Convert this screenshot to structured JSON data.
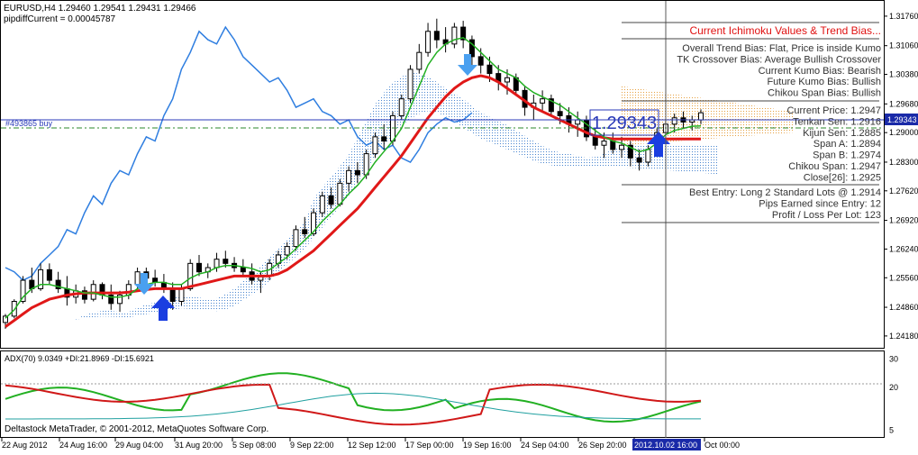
{
  "chart_data": {
    "type": "candlestick",
    "symbol_header": "EURUSD,H4  1.29460 1.29541 1.29431 1.29466",
    "indicator_line": "pipdiffCurrent = 0.00045787",
    "order_label": "#493865 buy",
    "price_axis": {
      "ylim": [
        1.239,
        1.321
      ],
      "ticks": [
        "1.31760",
        "1.31060",
        "1.30380",
        "1.29680",
        "1.29000",
        "1.28300",
        "1.27620",
        "1.26920",
        "1.26240",
        "1.25560",
        "1.24860",
        "1.24180"
      ],
      "tick_values": [
        1.3176,
        1.3106,
        1.3038,
        1.2968,
        1.29,
        1.283,
        1.2762,
        1.2692,
        1.2624,
        1.2556,
        1.2486,
        1.2418
      ],
      "current_price_label": "1.29343",
      "current_price_value": 1.29343
    },
    "big_price_label": "1.29343",
    "time_axis": {
      "ticks": [
        "22 Aug 2012",
        "24 Aug 16:00",
        "29 Aug 04:00",
        "31 Aug 20:00",
        "5 Sep 08:00",
        "9 Sep 22:00",
        "12 Sep 12:00",
        "17 Sep 00:00",
        "19 Sep 16:00",
        "24 Sep 04:00",
        "26 Sep 20:00",
        "2012.10.02 16:00",
        "Oct 00:00"
      ]
    },
    "info_panel": {
      "title": "Current Ichimoku Values & Trend Bias...",
      "bias_lines": [
        "Overall Trend Bias: Flat, Price is inside Kumo",
        "TK Crossover Bias: Average Bullish Crossover",
        "Current Kumo Bias: Bearish",
        "Future Kumo Bias: Bullish",
        "Chikou Span Bias: Bullish"
      ],
      "value_lines": [
        "Current Price: 1.2947",
        "Tenkan Sen: 1.2916",
        "Kijun Sen: 1.2885",
        "Span A: 1.2894",
        "Span B: 1.2974",
        "Chikou Span: 1.2947",
        "Close[26]: 1.2925"
      ],
      "entry_lines": [
        "Best Entry: Long 2 Standard Lots @ 1.2914",
        "Pips Earned since Entry: 12",
        "Profit / Loss Per Lot: 123"
      ]
    },
    "adx_panel": {
      "label": "ADX(70) 9.0349 +DI:21.8969 -DI:15.6921",
      "ticks": [
        "30",
        "20",
        "5"
      ],
      "tick_values": [
        30,
        20,
        5
      ],
      "ylim": [
        3,
        32
      ]
    },
    "copyright": "Deltastock MetaTrader, © 2001-2012, MetaQuotes Software Corp.",
    "candles": [
      [
        1.245,
        1.247,
        1.2435,
        1.2465
      ],
      [
        1.2465,
        1.2505,
        1.246,
        1.25
      ],
      [
        1.25,
        1.256,
        1.2495,
        1.255
      ],
      [
        1.255,
        1.258,
        1.252,
        1.253
      ],
      [
        1.253,
        1.259,
        1.2525,
        1.2575
      ],
      [
        1.2575,
        1.259,
        1.254,
        1.255
      ],
      [
        1.255,
        1.257,
        1.252,
        1.253
      ],
      [
        1.253,
        1.256,
        1.249,
        1.251
      ],
      [
        1.251,
        1.254,
        1.2495,
        1.2525
      ],
      [
        1.2525,
        1.2535,
        1.2495,
        1.2505
      ],
      [
        1.2505,
        1.255,
        1.25,
        1.254
      ],
      [
        1.254,
        1.2545,
        1.2505,
        1.2515
      ],
      [
        1.2515,
        1.254,
        1.248,
        1.2495
      ],
      [
        1.2495,
        1.2525,
        1.2475,
        1.2515
      ],
      [
        1.2515,
        1.255,
        1.2505,
        1.254
      ],
      [
        1.254,
        1.258,
        1.253,
        1.257
      ],
      [
        1.257,
        1.258,
        1.254,
        1.2555
      ],
      [
        1.2555,
        1.2575,
        1.2535,
        1.2545
      ],
      [
        1.2545,
        1.2565,
        1.252,
        1.253
      ],
      [
        1.253,
        1.2545,
        1.248,
        1.25
      ],
      [
        1.25,
        1.254,
        1.249,
        1.253
      ],
      [
        1.253,
        1.26,
        1.2525,
        1.259
      ],
      [
        1.259,
        1.261,
        1.256,
        1.257
      ],
      [
        1.257,
        1.259,
        1.2555,
        1.258
      ],
      [
        1.258,
        1.2615,
        1.257,
        1.26
      ],
      [
        1.26,
        1.262,
        1.258,
        1.259
      ],
      [
        1.259,
        1.2605,
        1.257,
        1.258
      ],
      [
        1.258,
        1.26,
        1.256,
        1.257
      ],
      [
        1.257,
        1.259,
        1.254,
        1.255
      ],
      [
        1.255,
        1.257,
        1.252,
        1.256
      ],
      [
        1.256,
        1.26,
        1.255,
        1.259
      ],
      [
        1.259,
        1.262,
        1.258,
        1.261
      ],
      [
        1.261,
        1.264,
        1.26,
        1.263
      ],
      [
        1.263,
        1.268,
        1.262,
        1.267
      ],
      [
        1.267,
        1.27,
        1.265,
        1.266
      ],
      [
        1.266,
        1.272,
        1.2655,
        1.271
      ],
      [
        1.271,
        1.276,
        1.27,
        1.275
      ],
      [
        1.275,
        1.277,
        1.272,
        1.273
      ],
      [
        1.273,
        1.279,
        1.2725,
        1.278
      ],
      [
        1.278,
        1.282,
        1.276,
        1.281
      ],
      [
        1.281,
        1.283,
        1.278,
        1.28
      ],
      [
        1.28,
        1.286,
        1.279,
        1.285
      ],
      [
        1.285,
        1.29,
        1.284,
        1.289
      ],
      [
        1.289,
        1.292,
        1.286,
        1.288
      ],
      [
        1.288,
        1.295,
        1.287,
        1.294
      ],
      [
        1.294,
        1.299,
        1.293,
        1.298
      ],
      [
        1.298,
        1.306,
        1.297,
        1.305
      ],
      [
        1.305,
        1.311,
        1.304,
        1.309
      ],
      [
        1.309,
        1.316,
        1.308,
        1.314
      ],
      [
        1.314,
        1.317,
        1.31,
        1.312
      ],
      [
        1.312,
        1.315,
        1.309,
        1.311
      ],
      [
        1.311,
        1.316,
        1.31,
        1.315
      ],
      [
        1.315,
        1.3165,
        1.31,
        1.312
      ],
      [
        1.312,
        1.313,
        1.306,
        1.308
      ],
      [
        1.308,
        1.31,
        1.304,
        1.306
      ],
      [
        1.306,
        1.308,
        1.302,
        1.304
      ],
      [
        1.304,
        1.306,
        1.3,
        1.302
      ],
      [
        1.302,
        1.305,
        1.299,
        1.303
      ],
      [
        1.303,
        1.304,
        1.299,
        1.3
      ],
      [
        1.3,
        1.301,
        1.294,
        1.296
      ],
      [
        1.296,
        1.299,
        1.293,
        1.297
      ],
      [
        1.297,
        1.3,
        1.295,
        1.298
      ],
      [
        1.298,
        1.299,
        1.294,
        1.295
      ],
      [
        1.295,
        1.297,
        1.292,
        1.294
      ],
      [
        1.294,
        1.296,
        1.29,
        1.292
      ],
      [
        1.292,
        1.295,
        1.289,
        1.293
      ],
      [
        1.293,
        1.294,
        1.288,
        1.289
      ],
      [
        1.289,
        1.291,
        1.286,
        1.287
      ],
      [
        1.287,
        1.29,
        1.284,
        1.288
      ],
      [
        1.288,
        1.29,
        1.285,
        1.286
      ],
      [
        1.286,
        1.289,
        1.284,
        1.287
      ],
      [
        1.287,
        1.288,
        1.282,
        1.284
      ],
      [
        1.284,
        1.286,
        1.281,
        1.283
      ],
      [
        1.283,
        1.287,
        1.282,
        1.286
      ],
      [
        1.286,
        1.291,
        1.285,
        1.29
      ],
      [
        1.29,
        1.293,
        1.288,
        1.292
      ],
      [
        1.292,
        1.2945,
        1.29,
        1.2935
      ],
      [
        1.2935,
        1.295,
        1.291,
        1.2925
      ],
      [
        1.2925,
        1.294,
        1.2905,
        1.293
      ],
      [
        1.293,
        1.2955,
        1.292,
        1.2947
      ]
    ],
    "tenkan": [
      1.246,
      1.248,
      1.251,
      1.253,
      1.254,
      1.254,
      1.2535,
      1.253,
      1.2525,
      1.252,
      1.252,
      1.2515,
      1.251,
      1.251,
      1.2515,
      1.253,
      1.254,
      1.2545,
      1.2545,
      1.254,
      1.254,
      1.2555,
      1.2565,
      1.257,
      1.258,
      1.2585,
      1.2585,
      1.2582,
      1.2578,
      1.257,
      1.2575,
      1.259,
      1.2605,
      1.2625,
      1.2645,
      1.2665,
      1.269,
      1.271,
      1.273,
      1.2755,
      1.2775,
      1.28,
      1.283,
      1.2855,
      1.288,
      1.291,
      1.296,
      1.301,
      1.306,
      1.309,
      1.311,
      1.312,
      1.3125,
      1.311,
      1.309,
      1.307,
      1.305,
      1.304,
      1.303,
      1.301,
      1.2995,
      1.2985,
      1.2975,
      1.2965,
      1.295,
      1.2935,
      1.292,
      1.2905,
      1.289,
      1.288,
      1.2875,
      1.2865,
      1.2855,
      1.286,
      1.2875,
      1.2895,
      1.2905,
      1.291,
      1.2915,
      1.2916
    ],
    "kijun": [
      1.244,
      1.2455,
      1.247,
      1.2485,
      1.2495,
      1.2505,
      1.251,
      1.2515,
      1.2518,
      1.252,
      1.252,
      1.252,
      1.252,
      1.252,
      1.2522,
      1.2525,
      1.2528,
      1.253,
      1.253,
      1.253,
      1.253,
      1.2535,
      1.254,
      1.2545,
      1.255,
      1.2555,
      1.256,
      1.256,
      1.256,
      1.256,
      1.256,
      1.2565,
      1.2575,
      1.259,
      1.2605,
      1.262,
      1.264,
      1.266,
      1.268,
      1.27,
      1.272,
      1.2745,
      1.277,
      1.2795,
      1.282,
      1.2845,
      1.2875,
      1.2905,
      1.2935,
      1.296,
      1.2985,
      1.3005,
      1.302,
      1.303,
      1.3035,
      1.303,
      1.302,
      1.3005,
      1.299,
      1.2975,
      1.296,
      1.295,
      1.294,
      1.293,
      1.292,
      1.291,
      1.29,
      1.2892,
      1.2888,
      1.2885,
      1.2885,
      1.2885,
      1.2885,
      1.2885,
      1.2885,
      1.2885,
      1.2885,
      1.2885,
      1.2885,
      1.2885
    ]
  }
}
